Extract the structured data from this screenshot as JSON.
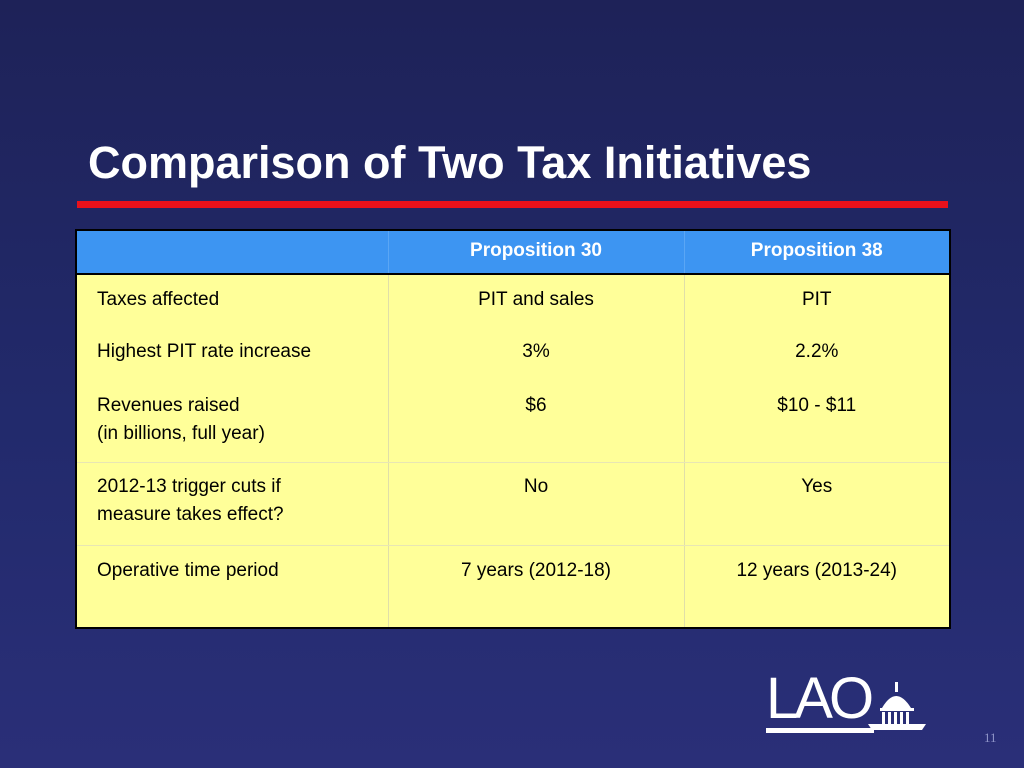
{
  "slide": {
    "title": "Comparison of Two Tax Initiatives",
    "page_number": "11",
    "logo_text": "LAO"
  },
  "table": {
    "headers": [
      "",
      "Proposition 30",
      "Proposition 38"
    ],
    "rows": [
      {
        "label": "Taxes affected",
        "label_line2": "",
        "prop30": "PIT and sales",
        "prop38": "PIT"
      },
      {
        "label": "Highest PIT rate increase",
        "label_line2": "",
        "prop30": "3%",
        "prop38": "2.2%"
      },
      {
        "label": "Revenues raised",
        "label_line2": "(in billions, full year)",
        "prop30": "$6",
        "prop38": "$10 - $11"
      },
      {
        "label": "2012-13 trigger cuts if",
        "label_line2": "measure takes effect?",
        "prop30": "No",
        "prop38": "Yes"
      },
      {
        "label": "Operative time period",
        "label_line2": "",
        "prop30": "7 years (2012-18)",
        "prop38": "12 years (2013-24)"
      }
    ]
  },
  "colors": {
    "background": "#222a6c",
    "title_rule": "#e8111b",
    "header_fill": "#3d95f2",
    "body_fill": "#ffff99"
  }
}
